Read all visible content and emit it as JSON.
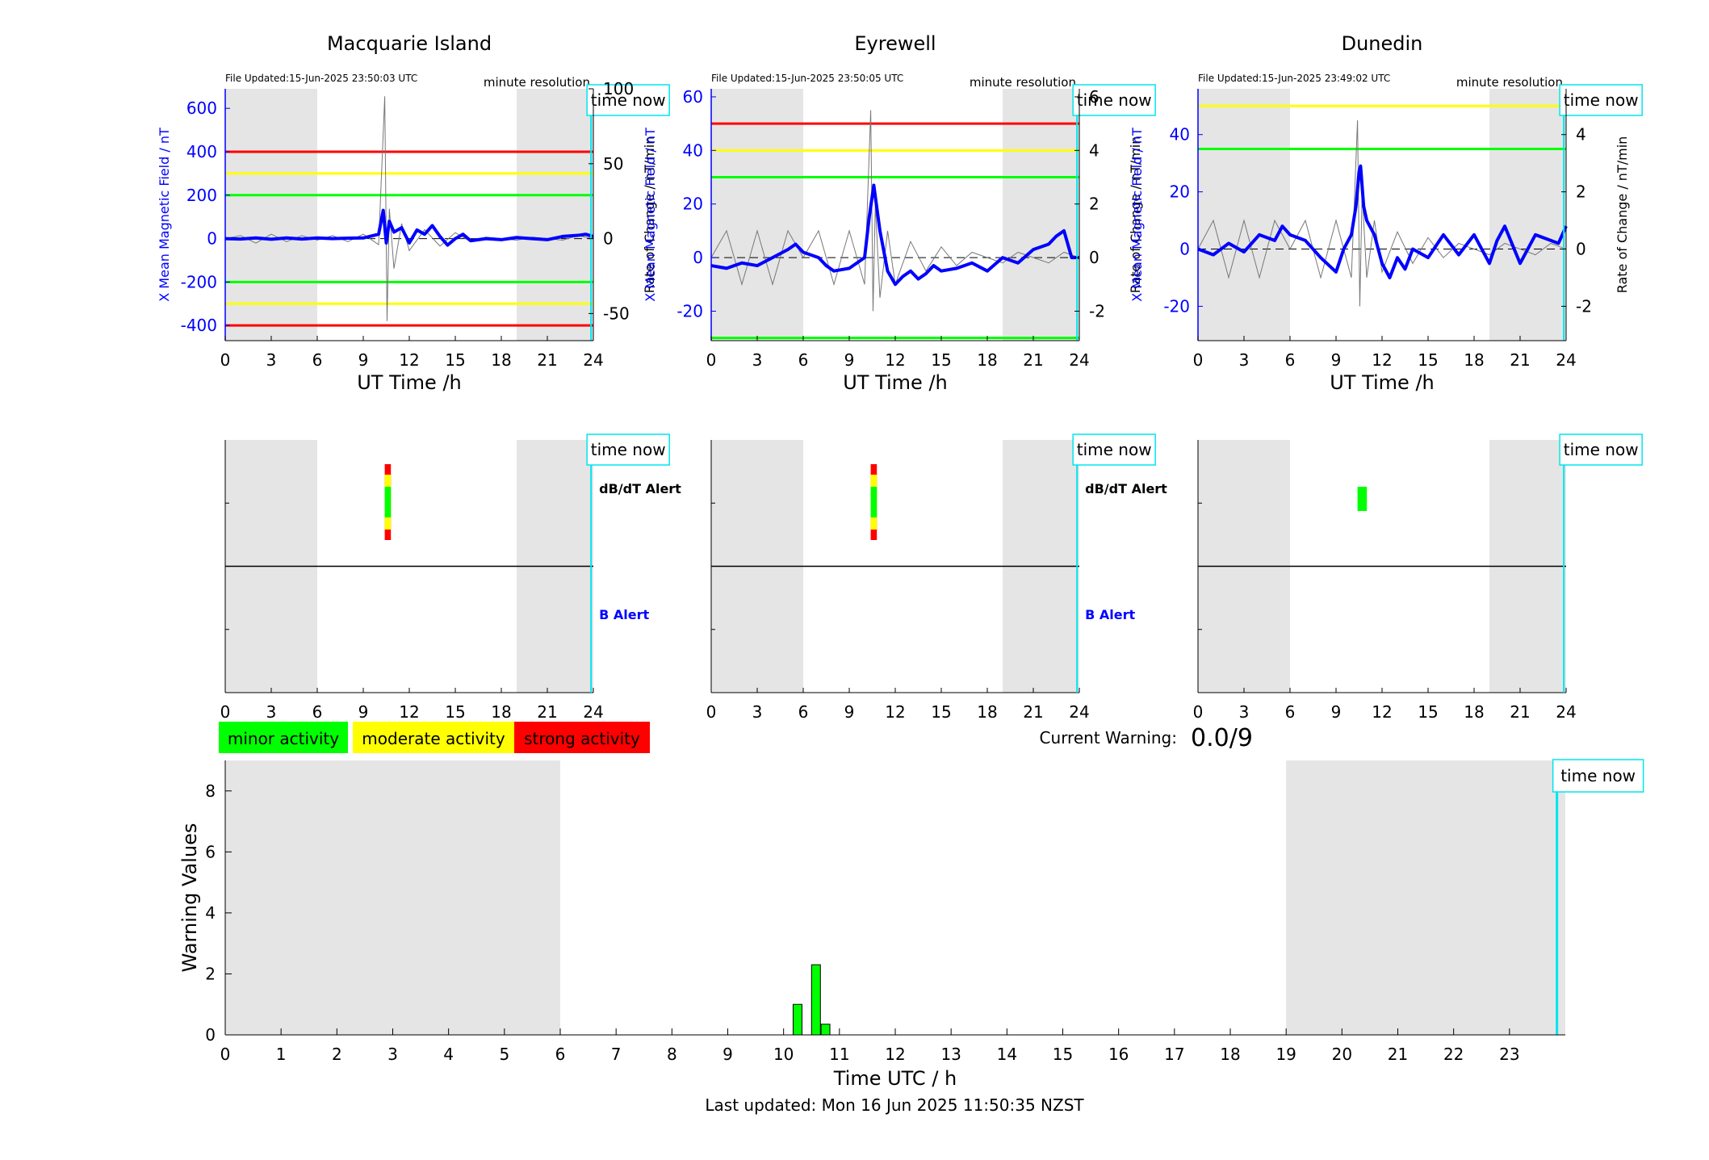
{
  "last_updated": "Last updated: Mon 16 Jun 2025 11:50:35 NZST",
  "current_warning": {
    "label": "Current Warning:",
    "value": "0.0/9"
  },
  "legend": [
    {
      "label": "minor activity",
      "color": "#00ff00"
    },
    {
      "label": "moderate activity",
      "color": "#ffff00"
    },
    {
      "label": "strong activity",
      "color": "#ff0000"
    }
  ],
  "common": {
    "time_now_label": "time now",
    "time_now_hour": 23.85,
    "resolution_label": "minute resolution",
    "xlabel": "UT Time /h",
    "y2label": "Rate of Change / nT/min",
    "alert_db_label": "dB/dT Alert",
    "alert_b_label": "B Alert",
    "night_shade": [
      [
        0,
        6
      ],
      [
        19,
        24
      ]
    ],
    "xticks": [
      0,
      3,
      6,
      9,
      12,
      15,
      18,
      21,
      24
    ]
  },
  "chart_data": [
    {
      "type": "line",
      "title": "Macquarie Island",
      "file_updated": "File Updated:15-Jun-2025 23:50:03 UTC",
      "ylabel": "X Mean Magnetic Field / nT",
      "xlim": [
        0,
        24
      ],
      "ylim": [
        -470,
        690
      ],
      "yticks": [
        -400,
        -200,
        0,
        200,
        400,
        600
      ],
      "y2lim": [
        -68.1,
        100
      ],
      "y2ticks": [
        -50,
        0,
        50,
        100
      ],
      "thresholds": [
        {
          "value": 400,
          "color": "#ff0000"
        },
        {
          "value": 300,
          "color": "#ffff00"
        },
        {
          "value": 200,
          "color": "#00ff00"
        },
        {
          "value": -200,
          "color": "#00ff00"
        },
        {
          "value": -300,
          "color": "#ffff00"
        },
        {
          "value": -400,
          "color": "#ff0000"
        }
      ],
      "series": [
        {
          "x": [
            0,
            1,
            2,
            3,
            4,
            5,
            6,
            7,
            8,
            9,
            10,
            10.3,
            10.5,
            10.7,
            11,
            11.5,
            12,
            12.5,
            13,
            13.5,
            14,
            14.5,
            15,
            15.5,
            16,
            17,
            18,
            19,
            20,
            21,
            22,
            23,
            23.5,
            24
          ],
          "y": [
            0,
            -2,
            3,
            -3,
            3,
            -2,
            3,
            0,
            2,
            3,
            20,
            130,
            -20,
            80,
            30,
            50,
            -20,
            40,
            20,
            60,
            10,
            -30,
            0,
            20,
            -10,
            0,
            -5,
            5,
            0,
            -5,
            10,
            15,
            20,
            10
          ]
        },
        {
          "x": [
            0,
            1,
            2,
            3,
            4,
            5,
            6,
            7,
            8,
            9,
            10,
            10.4,
            10.55,
            10.7,
            11,
            11.5,
            12,
            13,
            14,
            15,
            16,
            17,
            18,
            19,
            20,
            21,
            22,
            23,
            24
          ],
          "y": [
            0,
            2,
            -3,
            3,
            -2,
            2,
            -1,
            2,
            -2,
            3,
            -4,
            95,
            -55,
            20,
            -20,
            10,
            -8,
            6,
            -5,
            4,
            -2,
            1,
            0,
            -1,
            1,
            0,
            -1,
            2,
            0
          ]
        }
      ],
      "alerts": {
        "db": [
          {
            "start": 10.4,
            "end": 10.8,
            "level": "strong"
          }
        ],
        "b": []
      }
    },
    {
      "type": "line",
      "title": "Eyrewell",
      "file_updated": "File Updated:15-Jun-2025 23:50:05 UTC",
      "ylabel": "X Mean Magnetic Field / nT",
      "xlim": [
        0,
        24
      ],
      "ylim": [
        -31,
        63
      ],
      "yticks": [
        -20,
        0,
        20,
        40,
        60
      ],
      "y2lim": [
        -3.1,
        6.3
      ],
      "y2ticks": [
        -2,
        0,
        2,
        4,
        6
      ],
      "thresholds": [
        {
          "value": 50,
          "color": "#ff0000"
        },
        {
          "value": 40,
          "color": "#ffff00"
        },
        {
          "value": 30,
          "color": "#00ff00"
        },
        {
          "value": -30,
          "color": "#00ff00"
        }
      ],
      "series": [
        {
          "x": [
            0,
            1,
            2,
            3,
            4,
            5,
            5.5,
            6,
            7,
            7.5,
            8,
            9,
            9.5,
            10,
            10.3,
            10.6,
            11,
            11.5,
            12,
            12.5,
            13,
            13.5,
            14,
            14.5,
            15,
            16,
            17,
            18,
            19,
            20,
            21,
            22,
            22.5,
            23,
            23.5,
            24
          ],
          "y": [
            -3,
            -4,
            -2,
            -3,
            0,
            3,
            5,
            2,
            0,
            -3,
            -5,
            -4,
            -2,
            0,
            15,
            27,
            10,
            -5,
            -10,
            -7,
            -5,
            -8,
            -6,
            -3,
            -5,
            -4,
            -2,
            -5,
            0,
            -2,
            3,
            5,
            8,
            10,
            0,
            0
          ]
        },
        {
          "x": [
            0,
            1,
            2,
            3,
            4,
            5,
            6,
            7,
            8,
            9,
            10,
            10.4,
            10.55,
            10.7,
            11,
            11.5,
            12,
            13,
            14,
            15,
            16,
            17,
            18,
            19,
            20,
            21,
            22,
            23,
            24
          ],
          "y": [
            0,
            1,
            -1,
            1,
            -1,
            1,
            0,
            1,
            -1,
            1,
            -1,
            5.5,
            -2,
            2,
            -1.5,
            1,
            -1,
            0.6,
            -0.5,
            0.4,
            -0.3,
            0.2,
            0,
            -0.2,
            0.2,
            0,
            -0.2,
            0.2,
            0
          ]
        }
      ],
      "alerts": {
        "db": [
          {
            "start": 10.4,
            "end": 10.8,
            "level": "strong"
          }
        ],
        "b": []
      }
    },
    {
      "type": "line",
      "title": "Dunedin",
      "file_updated": "File Updated:15-Jun-2025 23:49:02 UTC",
      "ylabel": "X Mean Magnetic Field / nT",
      "xlim": [
        0,
        24
      ],
      "ylim": [
        -32,
        56
      ],
      "yticks": [
        -20,
        0,
        20,
        40
      ],
      "y2lim": [
        -3.2,
        5.6
      ],
      "y2ticks": [
        -2,
        0,
        2,
        4
      ],
      "thresholds": [
        {
          "value": 50,
          "color": "#ffff00"
        },
        {
          "value": 35,
          "color": "#00ff00"
        }
      ],
      "series": [
        {
          "x": [
            0,
            1,
            2,
            3,
            4,
            5,
            5.5,
            6,
            7,
            7.5,
            8,
            9,
            9.5,
            10,
            10.3,
            10.5,
            10.6,
            10.8,
            11,
            11.5,
            12,
            12.5,
            13,
            13.5,
            14,
            15,
            16,
            17,
            18,
            18.5,
            19,
            19.5,
            20,
            21,
            22,
            23,
            23.5,
            24
          ],
          "y": [
            0,
            -2,
            2,
            -1,
            5,
            3,
            8,
            5,
            3,
            0,
            -3,
            -8,
            0,
            5,
            15,
            27,
            29,
            15,
            10,
            5,
            -5,
            -10,
            -3,
            -7,
            0,
            -3,
            5,
            -2,
            5,
            0,
            -5,
            3,
            8,
            -5,
            5,
            3,
            2,
            8
          ]
        },
        {
          "x": [
            0,
            1,
            2,
            3,
            4,
            5,
            6,
            7,
            8,
            9,
            10,
            10.4,
            10.55,
            10.7,
            11,
            11.5,
            12,
            13,
            14,
            15,
            16,
            17,
            18,
            19,
            20,
            21,
            22,
            23,
            24
          ],
          "y": [
            0,
            1,
            -1,
            1,
            -1,
            1,
            0,
            1,
            -1,
            1,
            -1,
            4.5,
            -2,
            2,
            -1,
            1,
            -0.8,
            0.6,
            -0.5,
            0.4,
            -0.3,
            0.2,
            0,
            -0.2,
            0.2,
            0,
            -0.2,
            0.2,
            0
          ]
        }
      ],
      "alerts": {
        "db": [
          {
            "start": 10.4,
            "end": 10.8,
            "level": "minor"
          }
        ],
        "b": []
      }
    },
    {
      "type": "bar",
      "title": "",
      "xlabel": "Time UTC / h",
      "ylabel": "Warning Values",
      "xlim": [
        0,
        24
      ],
      "ylim": [
        0,
        9
      ],
      "xticks": [
        0,
        1,
        2,
        3,
        4,
        5,
        6,
        7,
        8,
        9,
        10,
        11,
        12,
        13,
        14,
        15,
        16,
        17,
        18,
        19,
        20,
        21,
        22,
        23
      ],
      "yticks": [
        0,
        2,
        4,
        6,
        8
      ],
      "night_shade": [
        [
          0,
          6
        ],
        [
          19,
          24
        ]
      ],
      "bar_color": "#00ff00",
      "bars": [
        {
          "x": 10.25,
          "value": 1.0
        },
        {
          "x": 10.58,
          "value": 2.3
        },
        {
          "x": 10.75,
          "value": 0.35
        }
      ]
    }
  ]
}
